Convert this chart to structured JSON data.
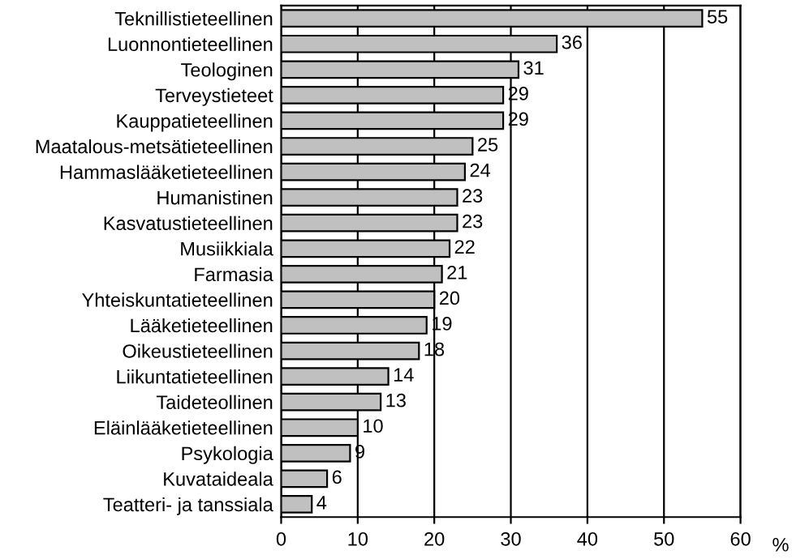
{
  "chart_data": {
    "type": "bar",
    "orientation": "horizontal",
    "categories": [
      "Teknillistieteellinen",
      "Luonnontieteellinen",
      "Teologinen",
      "Terveystieteet",
      "Kauppatieteellinen",
      "Maatalous-metsätieteellinen",
      "Hammaslääketieteellinen",
      "Humanistinen",
      "Kasvatustieteellinen",
      "Musiikkiala",
      "Farmasia",
      "Yhteiskuntatieteellinen",
      "Lääketieteellinen",
      "Oikeustieteellinen",
      "Liikuntatieteellinen",
      "Taideteollinen",
      "Eläinlääketieteellinen",
      "Psykologia",
      "Kuvataideala",
      "Teatteri- ja tanssiala"
    ],
    "values": [
      55,
      36,
      31,
      29,
      29,
      25,
      24,
      23,
      23,
      22,
      21,
      20,
      19,
      18,
      14,
      13,
      10,
      9,
      6,
      4
    ],
    "color": "#c0c0c0",
    "xlim": [
      0,
      60
    ],
    "xticks": [
      0,
      10,
      20,
      30,
      40,
      50,
      60
    ],
    "xlabel": "%",
    "grid": "x",
    "data_labels": true,
    "legend": false
  }
}
